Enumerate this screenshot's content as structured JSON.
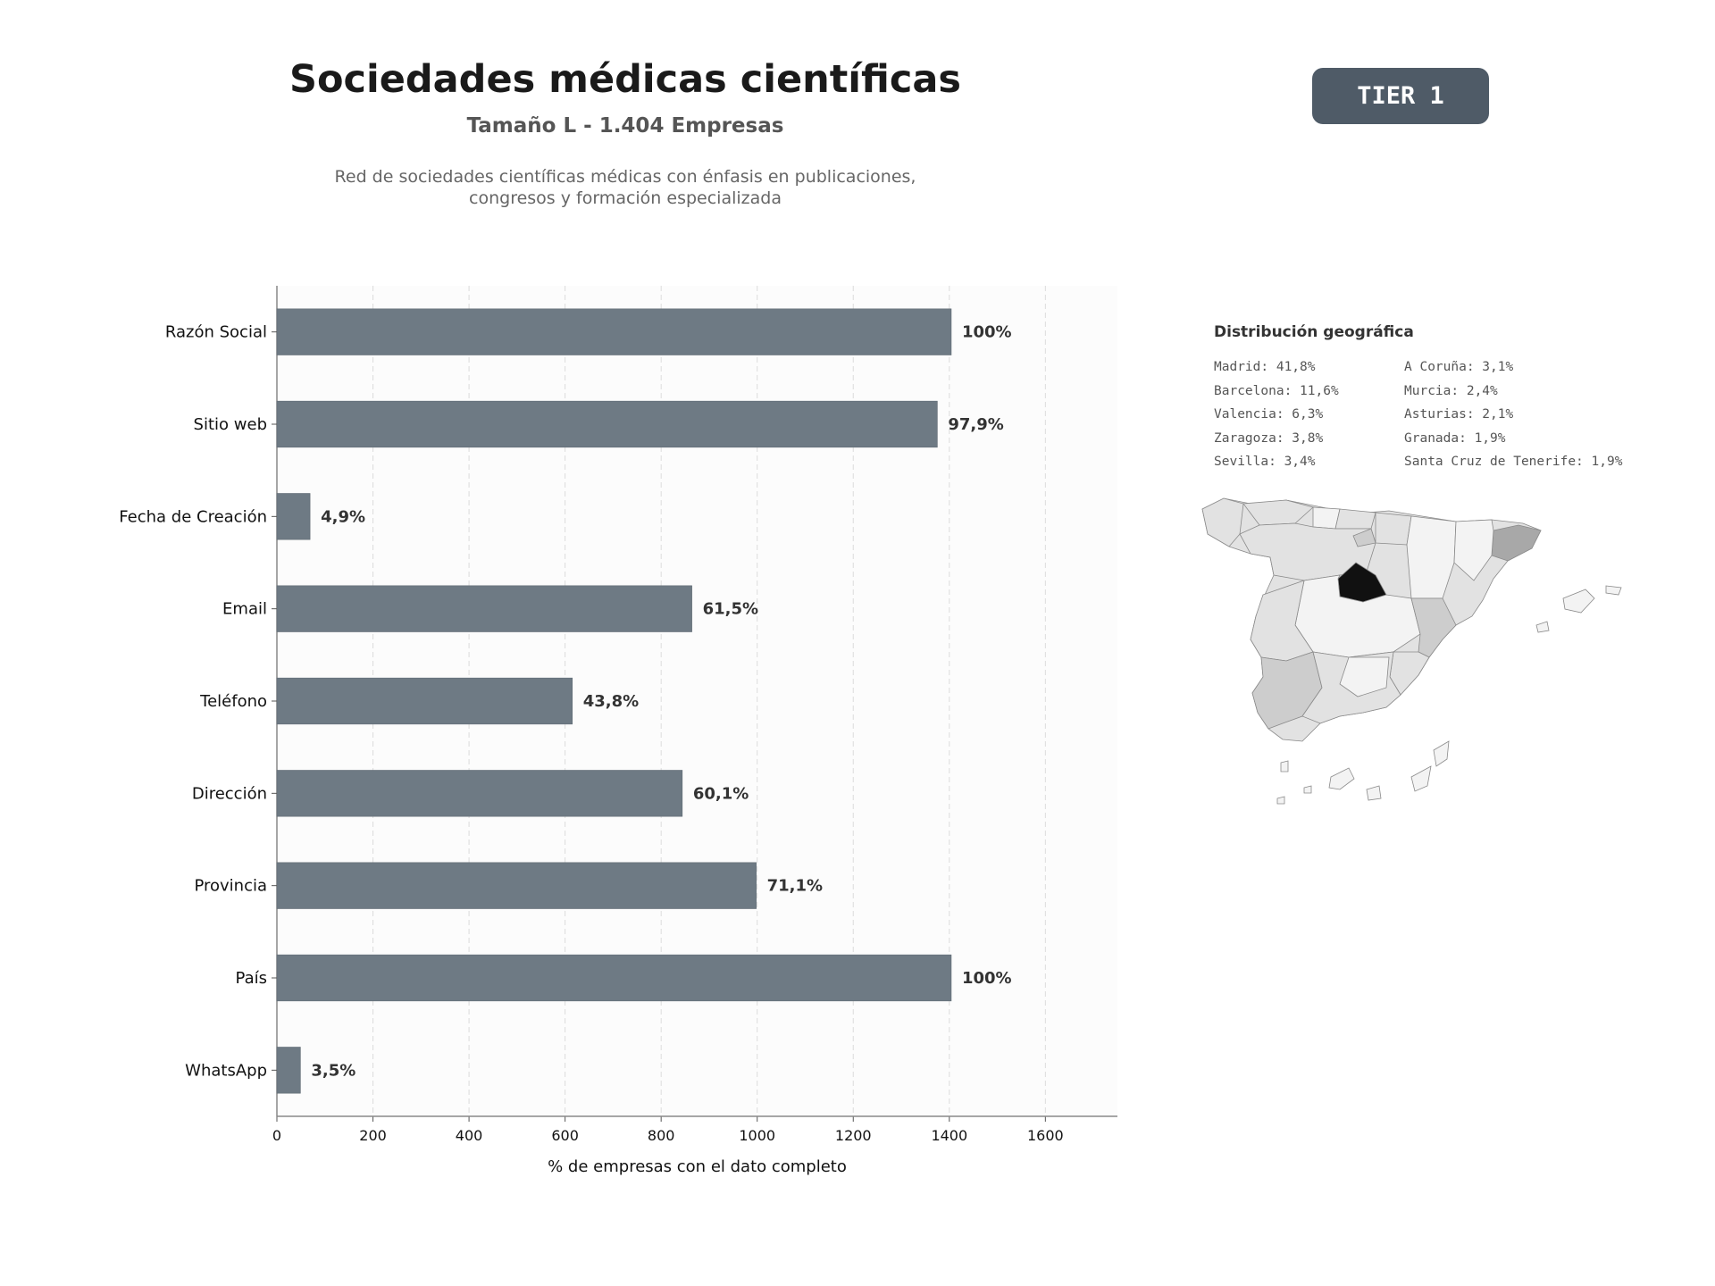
{
  "header": {
    "title": "Sociedades médicas científicas",
    "subtitle": "Tamaño L - 1.404 Empresas",
    "description_line1": "Red de sociedades científicas médicas con énfasis en publicaciones,",
    "description_line2": "congresos y formación especializada"
  },
  "badge": {
    "label": "TIER 1",
    "color": "#4f5b67"
  },
  "chart_data": {
    "type": "bar",
    "orientation": "horizontal",
    "title": "",
    "xlabel": "% de empresas con el dato completo",
    "ylabel": "",
    "xlim": [
      0,
      1750
    ],
    "xticks": [
      0,
      200,
      400,
      600,
      800,
      1000,
      1200,
      1400,
      1600
    ],
    "grid": "vertical dashed",
    "bar_color": "#6e7a84",
    "categories": [
      "Razón Social",
      "Sitio web",
      "Fecha de Creación",
      "Email",
      "Teléfono",
      "Dirección",
      "Provincia",
      "País",
      "WhatsApp"
    ],
    "values": [
      1404,
      1375,
      69,
      864,
      615,
      844,
      998,
      1404,
      49
    ],
    "labels": [
      "100%",
      "97,9%",
      "4,9%",
      "61,5%",
      "43,8%",
      "60,1%",
      "71,1%",
      "100%",
      "3,5%"
    ]
  },
  "geo": {
    "title": "Distribución geográfica",
    "left_column": [
      "Madrid: 41,8%",
      "Barcelona: 11,6%",
      "Valencia: 6,3%",
      "Zaragoza: 3,8%",
      "Sevilla: 3,4%"
    ],
    "right_column": [
      "A Coruña: 3,1%",
      "Murcia: 2,4%",
      "Asturias: 2,1%",
      "Granada: 1,9%",
      "Santa Cruz de Tenerife: 1,9%"
    ],
    "map_colors": {
      "highlight": "#111111",
      "secondary": "#a8a8a8",
      "tertiary": "#cdcdcd",
      "base": "#e2e2e2",
      "light": "#f3f3f3",
      "border": "#8a8a8a"
    }
  }
}
